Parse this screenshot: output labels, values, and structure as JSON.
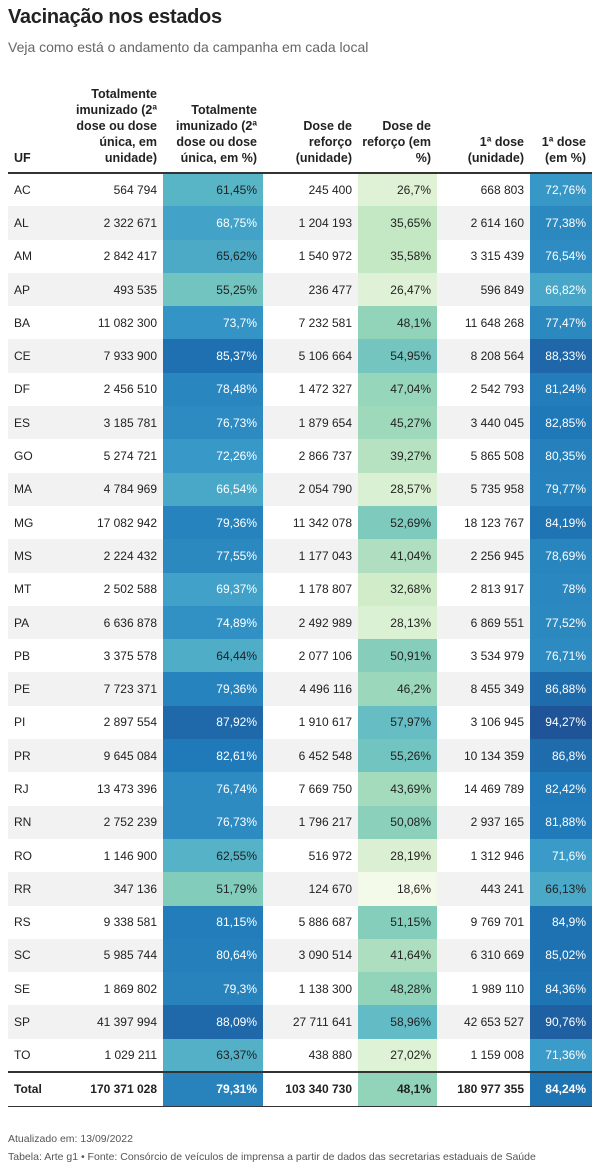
{
  "header": {
    "title": "Vacinação nos estados",
    "subtitle": "Veja como está o andamento da campanha em cada local"
  },
  "table": {
    "columns": [
      "UF",
      "Totalmente imunizado (2ª dose ou dose única, em unidade)",
      "Totalmente imunizado (2ª dose ou dose única, em %)",
      "Dose de reforço (unidade)",
      "Dose de reforço (em %)",
      "1ª dose (unidade)",
      "1ª dose (em %)"
    ],
    "rows": [
      [
        "AC",
        "564 794",
        "61,45%",
        "245 400",
        "26,7%",
        "668 803",
        "72,76%"
      ],
      [
        "AL",
        "2 322 671",
        "68,75%",
        "1 204 193",
        "35,65%",
        "2 614 160",
        "77,38%"
      ],
      [
        "AM",
        "2 842 417",
        "65,62%",
        "1 540 972",
        "35,58%",
        "3 315 439",
        "76,54%"
      ],
      [
        "AP",
        "493 535",
        "55,25%",
        "236 477",
        "26,47%",
        "596 849",
        "66,82%"
      ],
      [
        "BA",
        "11 082 300",
        "73,7%",
        "7 232 581",
        "48,1%",
        "11 648 268",
        "77,47%"
      ],
      [
        "CE",
        "7 933 900",
        "85,37%",
        "5 106 664",
        "54,95%",
        "8 208 564",
        "88,33%"
      ],
      [
        "DF",
        "2 456 510",
        "78,48%",
        "1 472 327",
        "47,04%",
        "2 542 793",
        "81,24%"
      ],
      [
        "ES",
        "3 185 781",
        "76,73%",
        "1 879 654",
        "45,27%",
        "3 440 045",
        "82,85%"
      ],
      [
        "GO",
        "5 274 721",
        "72,26%",
        "2 866 737",
        "39,27%",
        "5 865 508",
        "80,35%"
      ],
      [
        "MA",
        "4 784 969",
        "66,54%",
        "2 054 790",
        "28,57%",
        "5 735 958",
        "79,77%"
      ],
      [
        "MG",
        "17 082 942",
        "79,36%",
        "11 342 078",
        "52,69%",
        "18 123 767",
        "84,19%"
      ],
      [
        "MS",
        "2 224 432",
        "77,55%",
        "1 177 043",
        "41,04%",
        "2 256 945",
        "78,69%"
      ],
      [
        "MT",
        "2 502 588",
        "69,37%",
        "1 178 807",
        "32,68%",
        "2 813 917",
        "78%"
      ],
      [
        "PA",
        "6 636 878",
        "74,89%",
        "2 492 989",
        "28,13%",
        "6 869 551",
        "77,52%"
      ],
      [
        "PB",
        "3 375 578",
        "64,44%",
        "2 077 106",
        "50,91%",
        "3 534 979",
        "76,71%"
      ],
      [
        "PE",
        "7 723 371",
        "79,36%",
        "4 496 116",
        "46,2%",
        "8 455 349",
        "86,88%"
      ],
      [
        "PI",
        "2 897 554",
        "87,92%",
        "1 910 617",
        "57,97%",
        "3 106 945",
        "94,27%"
      ],
      [
        "PR",
        "9 645 084",
        "82,61%",
        "6 452 548",
        "55,26%",
        "10 134 359",
        "86,8%"
      ],
      [
        "RJ",
        "13 473 396",
        "76,74%",
        "7 669 750",
        "43,69%",
        "14 469 789",
        "82,42%"
      ],
      [
        "RN",
        "2 752 239",
        "76,73%",
        "1 796 217",
        "50,08%",
        "2 937 165",
        "81,88%"
      ],
      [
        "RO",
        "1 146 900",
        "62,55%",
        "516 972",
        "28,19%",
        "1 312 946",
        "71,6%"
      ],
      [
        "RR",
        "347 136",
        "51,79%",
        "124 670",
        "18,6%",
        "443 241",
        "66,13%"
      ],
      [
        "RS",
        "9 338 581",
        "81,15%",
        "5 886 687",
        "51,15%",
        "9 769 701",
        "84,9%"
      ],
      [
        "SC",
        "5 985 744",
        "80,64%",
        "3 090 514",
        "41,64%",
        "6 310 669",
        "85,02%"
      ],
      [
        "SE",
        "1 869 802",
        "79,3%",
        "1 138 300",
        "48,28%",
        "1 989 110",
        "84,36%"
      ],
      [
        "SP",
        "41 397 994",
        "88,09%",
        "27 711 641",
        "58,96%",
        "42 653 527",
        "90,76%"
      ],
      [
        "TO",
        "1 029 211",
        "63,37%",
        "438 880",
        "27,02%",
        "1 159 008",
        "71,36%"
      ]
    ],
    "total": [
      "Total",
      "170 371 028",
      "79,31%",
      "103 340 730",
      "48,1%",
      "180 977 355",
      "84,24%"
    ]
  },
  "footer": {
    "updated": "Atualizado em: 13/09/2022",
    "source": "Tabela: Arte g1 • Fonte: Consórcio de veículos de imprensa a partir de dados das secretarias estaduais de Saúde"
  }
}
